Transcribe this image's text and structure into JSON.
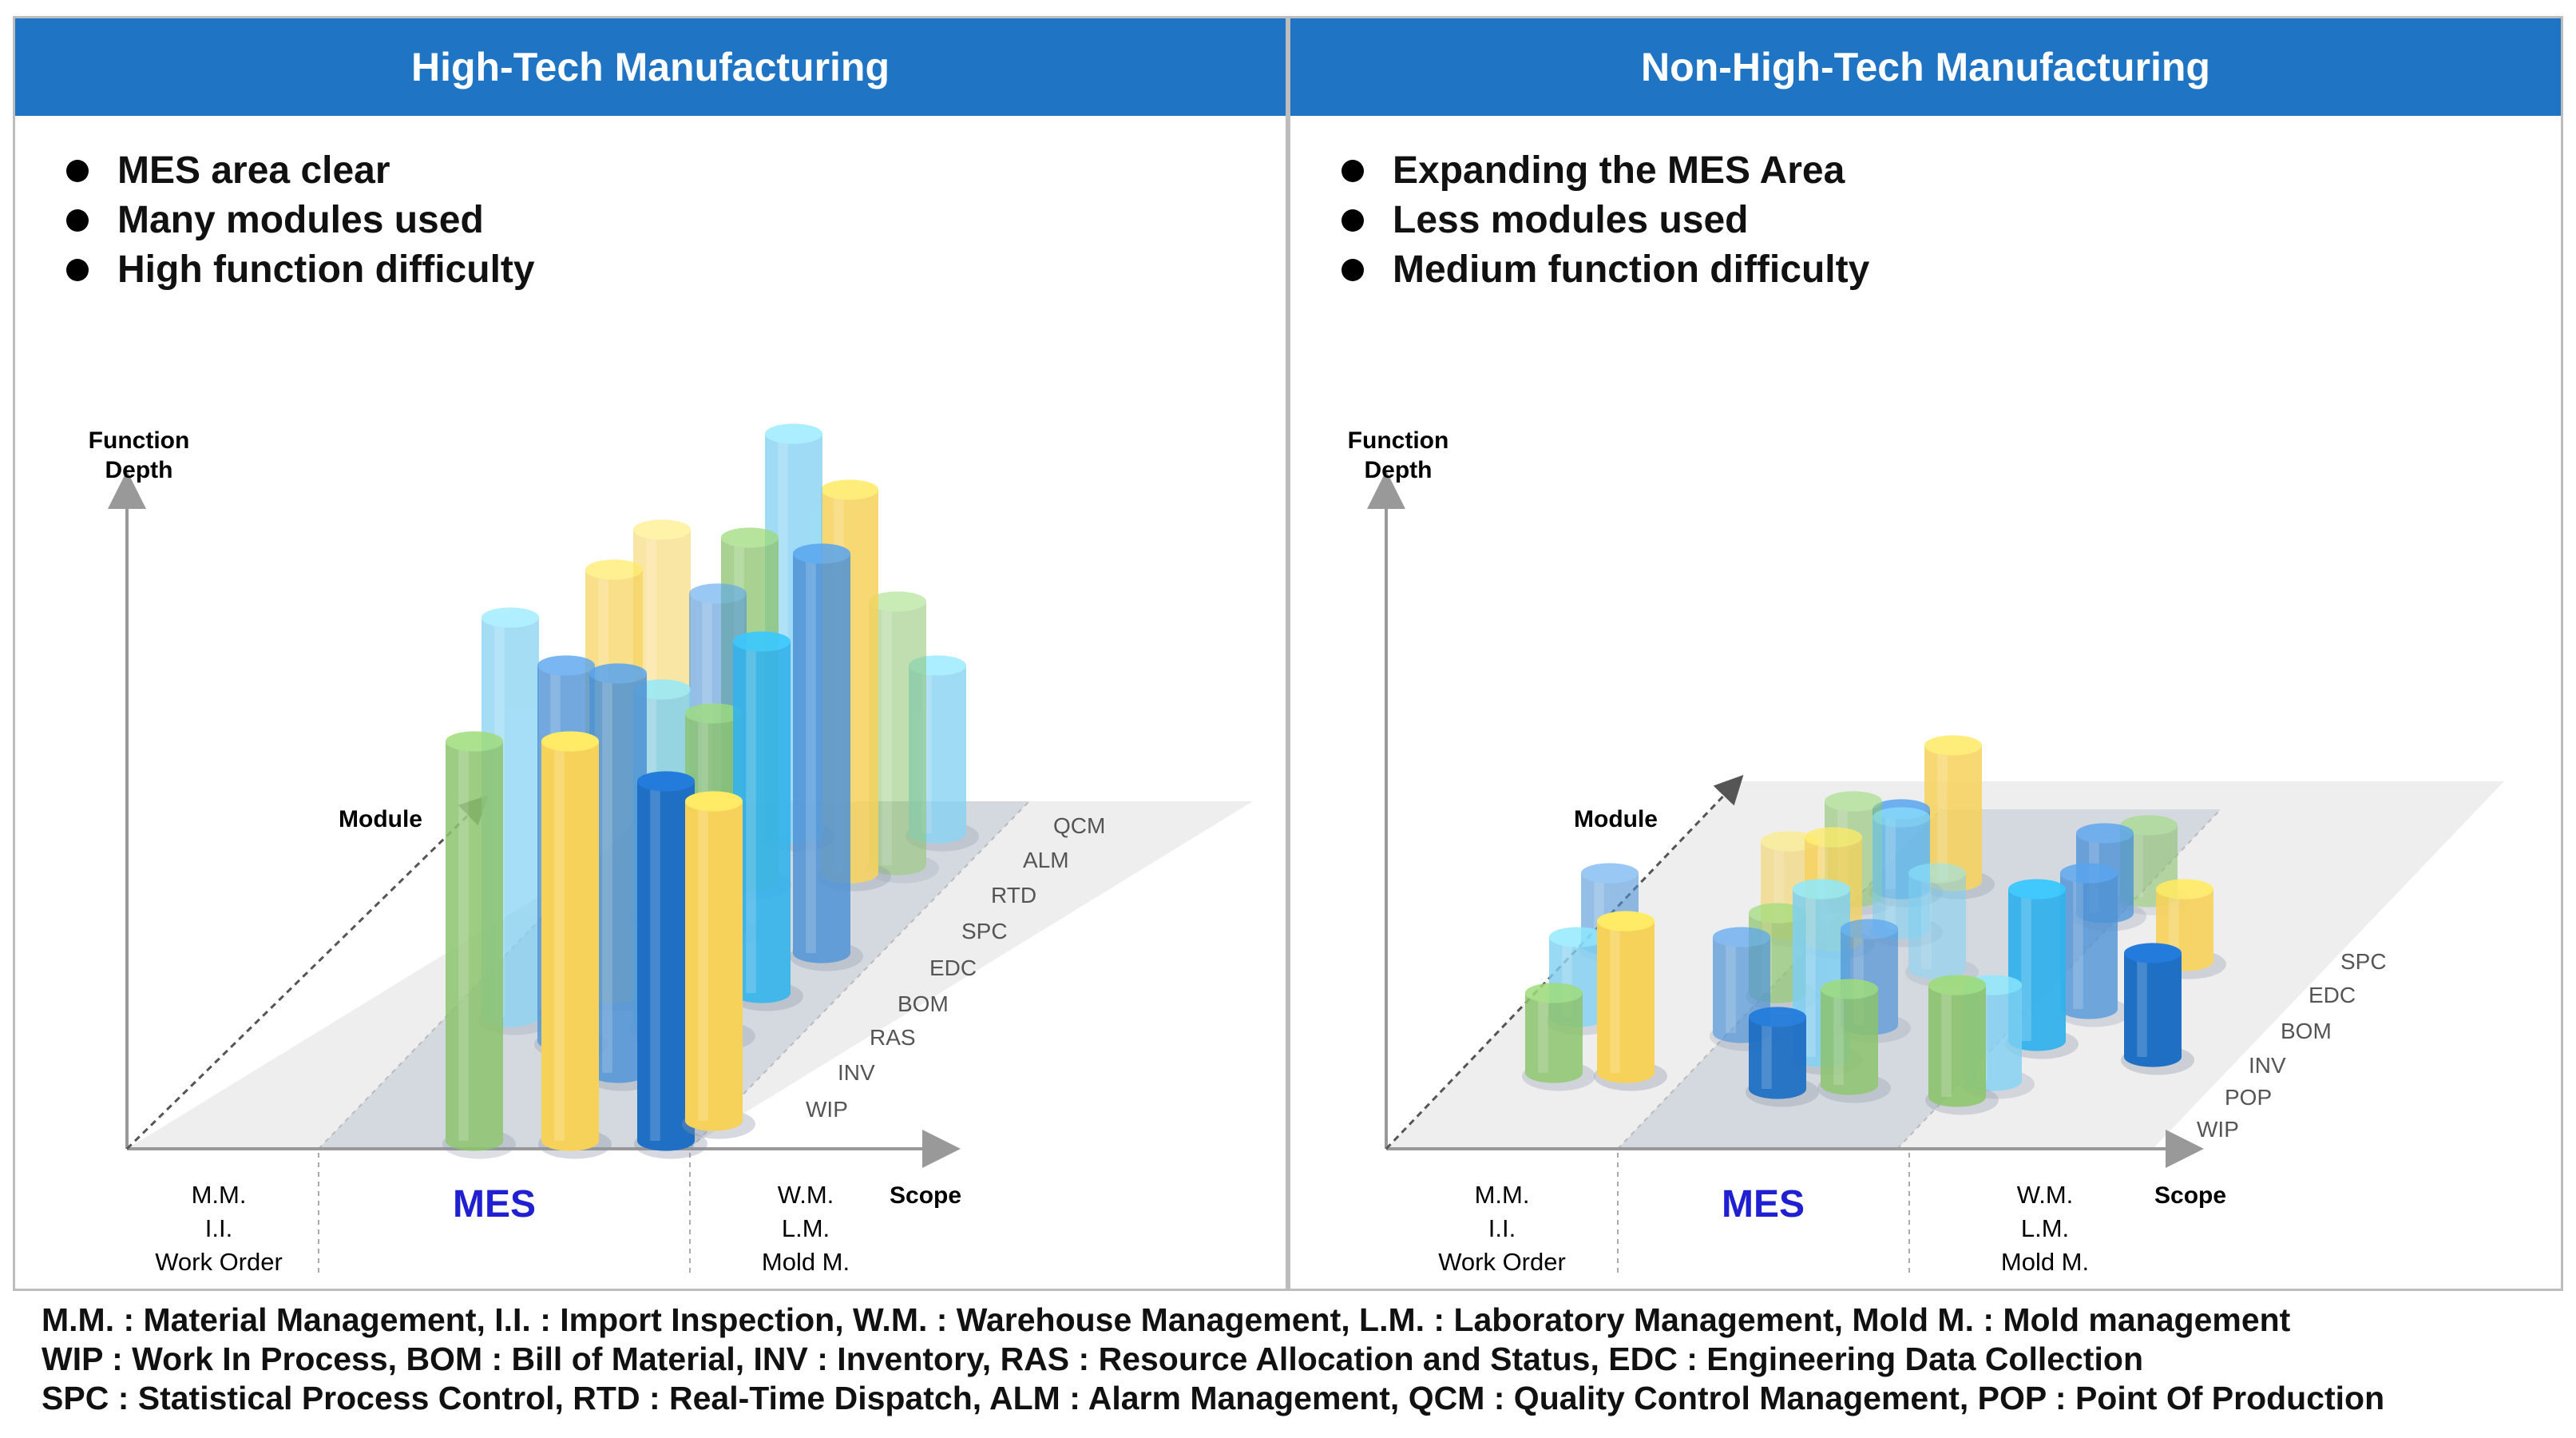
{
  "panels": [
    {
      "title": "High-Tech Manufacturing",
      "bullets": [
        "MES area clear",
        "Many modules used",
        "High function difficulty"
      ],
      "axis": {
        "y_label_1": "Function",
        "y_label_2": "Depth",
        "module_label": "Module",
        "x_label": "Scope"
      },
      "scope": {
        "left": [
          "M.M.",
          "I.I.",
          "Work Order"
        ],
        "middle": "MES",
        "right": [
          "W.M.",
          "L.M.",
          "Mold M."
        ]
      },
      "modules": [
        "WIP",
        "INV",
        "RAS",
        "BOM",
        "EDC",
        "SPC",
        "RTD",
        "ALM",
        "QCM"
      ]
    },
    {
      "title": "Non-High-Tech Manufacturing",
      "bullets": [
        "Expanding the MES Area",
        "Less modules used",
        "Medium function difficulty"
      ],
      "axis": {
        "y_label_1": "Function",
        "y_label_2": "Depth",
        "module_label": "Module",
        "x_label": "Scope"
      },
      "scope": {
        "left": [
          "M.M.",
          "I.I.",
          "Work Order"
        ],
        "middle": "MES",
        "right": [
          "W.M.",
          "L.M.",
          "Mold M."
        ]
      },
      "modules": [
        "WIP",
        "POP",
        "INV",
        "BOM",
        "EDC",
        "SPC"
      ]
    }
  ],
  "footer": [
    "M.M. : Material Management, I.I. : Import Inspection, W.M. : Warehouse Management, L.M. : Laboratory Management, Mold M. : Mold management",
    "WIP : Work In Process, BOM : Bill of Material, INV : Inventory, RAS : Resource Allocation and Status, EDC : Engineering Data Collection",
    "SPC : Statistical Process Control, RTD : Real-Time Dispatch, ALM : Alarm Management, QCM : Quality Control Management, POP : Point Of Production"
  ],
  "colors": {
    "header": "#1f74c4",
    "mes": "#2020d0",
    "green": "#8dc46e",
    "yellow": "#f7d25a",
    "lightblue": "#7fd0f2",
    "cyan": "#34b3ec",
    "midblue": "#4f93d6",
    "darkblue": "#1f6fc4"
  }
}
